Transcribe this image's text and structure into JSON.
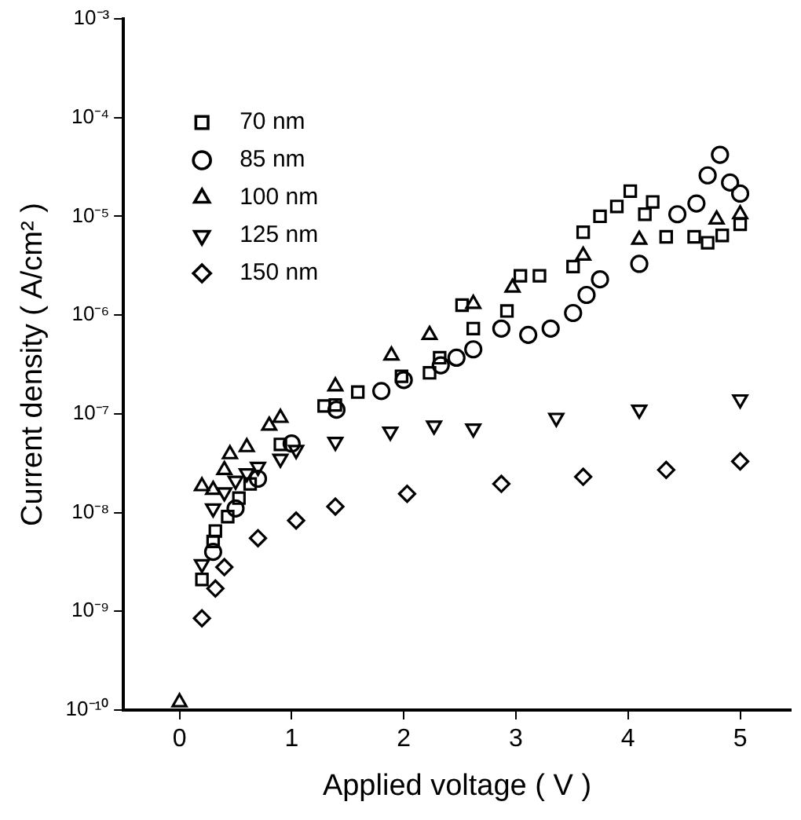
{
  "chart_data": {
    "type": "scatter",
    "xlabel": "Applied voltage ( V )",
    "ylabel": "Current density ( A/cm² )",
    "log": "y",
    "grid": false,
    "legend": "top left",
    "xlim": [
      -0.5,
      5.45
    ],
    "xticks": [
      0,
      1,
      2,
      3,
      4,
      5
    ],
    "ylim": [
      1e-10,
      0.001
    ],
    "yticks": [
      {
        "value": 1e-10,
        "label": "10⁻¹⁰"
      },
      {
        "value": 1e-09,
        "label": "10⁻⁹"
      },
      {
        "value": 1e-08,
        "label": "10⁻⁸"
      },
      {
        "value": 1e-07,
        "label": "10⁻⁷"
      },
      {
        "value": 1e-06,
        "label": "10⁻⁶"
      },
      {
        "value": 1e-05,
        "label": "10⁻⁵"
      },
      {
        "value": 0.0001,
        "label": "10⁻⁴"
      },
      {
        "value": 0.001,
        "label": "10⁻³"
      }
    ],
    "series": [
      {
        "name": "70 nm",
        "color": "#000000",
        "marker": "square",
        "x": [
          0.2,
          0.3,
          0.32,
          0.43,
          0.53,
          0.63,
          0.9,
          1.29,
          1.39,
          1.59,
          1.98,
          2.23,
          2.32,
          2.52,
          2.62,
          2.92,
          3.04,
          3.21,
          3.51,
          3.6,
          3.75,
          3.9,
          4.02,
          4.15,
          4.22,
          4.34,
          4.59,
          4.71,
          4.84,
          5.0
        ],
        "values": [
          2.1e-09,
          5.1e-09,
          6.5e-09,
          9.1e-09,
          1.4e-08,
          1.95e-08,
          4.9e-08,
          1.2e-07,
          1.23e-07,
          1.66e-07,
          2.4e-07,
          2.6e-07,
          3.7e-07,
          1.26e-06,
          7.3e-07,
          1.1e-06,
          2.5e-06,
          2.5e-06,
          3.1e-06,
          6.9e-06,
          1e-05,
          1.26e-05,
          1.8e-05,
          1.05e-05,
          1.4e-05,
          6.2e-06,
          6.2e-06,
          5.4e-06,
          6.4e-06,
          8.3e-06
        ]
      },
      {
        "name": "85 nm",
        "color": "#000000",
        "marker": "circle",
        "x": [
          0.3,
          0.5,
          0.7,
          1.0,
          1.4,
          1.8,
          2.0,
          2.33,
          2.47,
          2.62,
          2.87,
          3.11,
          3.31,
          3.51,
          3.63,
          3.75,
          4.1,
          4.44,
          4.61,
          4.71,
          4.82,
          4.91,
          5.0
        ],
        "values": [
          4e-09,
          1.1e-08,
          2.2e-08,
          5e-08,
          1.1e-07,
          1.7e-07,
          2.2e-07,
          3.1e-07,
          3.7e-07,
          4.5e-07,
          7.3e-07,
          6.3e-07,
          7.3e-07,
          1.05e-06,
          1.6e-06,
          2.3e-06,
          3.3e-06,
          1.05e-05,
          1.35e-05,
          2.6e-05,
          4.2e-05,
          2.2e-05,
          1.7e-05
        ]
      },
      {
        "name": "100 nm",
        "color": "#000000",
        "marker": "triangle",
        "x": [
          0,
          0.2,
          0.3,
          0.4,
          0.45,
          0.6,
          0.8,
          0.9,
          1.39,
          1.89,
          2.23,
          2.62,
          2.97,
          3.6,
          4.1,
          4.79,
          5.0
        ],
        "values": [
          1.2e-10,
          1.85e-08,
          1.7e-08,
          2.7e-08,
          3.9e-08,
          4.6e-08,
          7.6e-08,
          9.1e-08,
          1.9e-07,
          3.9e-07,
          6.3e-07,
          1.3e-06,
          1.9e-06,
          4e-06,
          5.8e-06,
          9.3e-06,
          1.05e-05
        ]
      },
      {
        "name": "125 nm",
        "color": "#000000",
        "marker": "triangle_down",
        "x": [
          0.2,
          0.3,
          0.4,
          0.5,
          0.6,
          0.7,
          0.9,
          1.04,
          1.39,
          1.88,
          2.27,
          2.62,
          3.36,
          4.1,
          5.0
        ],
        "values": [
          3e-09,
          1.1e-08,
          1.6e-08,
          2.1e-08,
          2.5e-08,
          2.9e-08,
          3.5e-08,
          4.3e-08,
          5.2e-08,
          6.6e-08,
          7.6e-08,
          7.1e-08,
          9.1e-08,
          1.1e-07,
          1.4e-07
        ]
      },
      {
        "name": "150 nm",
        "color": "#000000",
        "marker": "diamond",
        "x": [
          0.2,
          0.32,
          0.4,
          0.7,
          1.04,
          1.39,
          2.03,
          2.87,
          3.6,
          4.34,
          5.0
        ],
        "values": [
          8.5e-10,
          1.7e-09,
          2.8e-09,
          5.5e-09,
          8.3e-09,
          1.15e-08,
          1.55e-08,
          1.95e-08,
          2.3e-08,
          2.7e-08,
          3.3e-08
        ]
      }
    ]
  }
}
